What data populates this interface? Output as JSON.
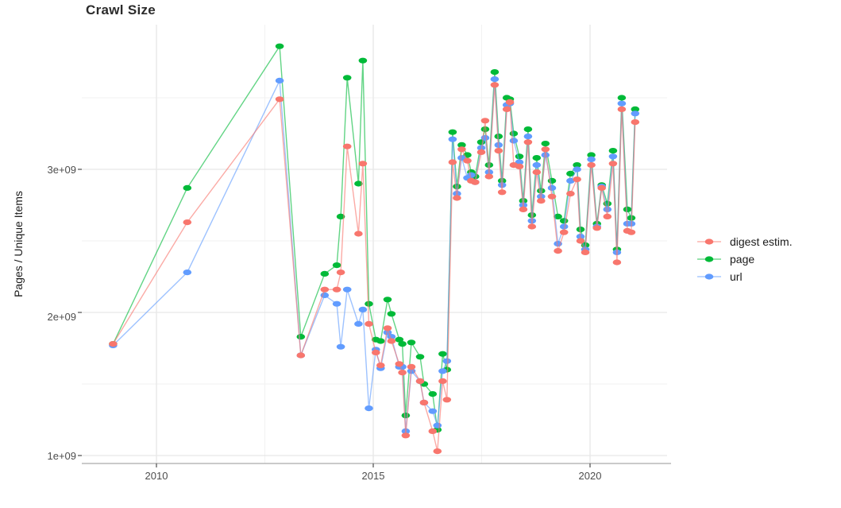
{
  "title": "Crawl Size",
  "axes": {
    "y_label": "Pages / Unique Items",
    "y_tick_labels": [
      "3e+09",
      "2e+09",
      "1e+09"
    ],
    "x_tick_labels": [
      "2010",
      "2015",
      "2020"
    ]
  },
  "legend": {
    "items": [
      {
        "label": "digest estim.",
        "color": "#F8766D"
      },
      {
        "label": "page",
        "color": "#00BA38"
      },
      {
        "label": "url",
        "color": "#619CFF"
      }
    ]
  },
  "colors": {
    "background": "#ffffff",
    "grid_major": "#e6e6e6",
    "grid_minor": "#f2f2f2",
    "axis_line": "#ababab",
    "tick_mark": "#4d4d4d",
    "title_text": "#2b2b2b",
    "axis_text": "#4d4d4d"
  },
  "chart_data": {
    "type": "line",
    "title": "Crawl Size",
    "xlabel": "",
    "ylabel": "Pages / Unique Items",
    "value_unit": "1e9 (billions of pages / unique items)",
    "xlim": [
      2008.3,
      2021.95
    ],
    "ylim_billion": [
      0.95,
      4.02
    ],
    "x_major_ticks": [
      2010,
      2015,
      2020
    ],
    "x_minor_ticks": [
      2012.5,
      2017.5
    ],
    "y_major_ticks_billion": [
      1,
      2,
      3
    ],
    "y_minor_ticks_billion": [
      1.5,
      2.5,
      3.5
    ],
    "grid": true,
    "legend_position": "right",
    "t": [
      2009.0,
      2010.71,
      2012.84,
      2013.33,
      2013.88,
      2014.16,
      2014.25,
      2014.4,
      2014.66,
      2014.76,
      2014.9,
      2015.06,
      2015.17,
      2015.33,
      2015.42,
      2015.6,
      2015.67,
      2015.75,
      2015.88,
      2016.08,
      2016.17,
      2016.37,
      2016.48,
      2016.6,
      2016.7,
      2016.83,
      2016.93,
      2017.04,
      2017.17,
      2017.26,
      2017.35,
      2017.49,
      2017.58,
      2017.67,
      2017.8,
      2017.89,
      2017.97,
      2018.08,
      2018.15,
      2018.24,
      2018.37,
      2018.46,
      2018.57,
      2018.66,
      2018.77,
      2018.87,
      2018.97,
      2019.12,
      2019.26,
      2019.4,
      2019.55,
      2019.7,
      2019.78,
      2019.89,
      2020.03,
      2020.16,
      2020.27,
      2020.4,
      2020.53,
      2020.62,
      2020.73,
      2020.86,
      2020.95,
      2021.04
    ],
    "series": [
      {
        "name": "digest estim.",
        "color": "#F8766D",
        "values_billion": [
          1.78,
          2.63,
          3.49,
          1.7,
          2.16,
          2.16,
          2.28,
          3.16,
          2.55,
          3.04,
          1.92,
          1.72,
          1.63,
          1.89,
          1.8,
          1.64,
          1.58,
          1.14,
          1.62,
          1.52,
          1.37,
          1.17,
          1.03,
          1.52,
          1.39,
          3.05,
          2.8,
          3.14,
          3.06,
          2.92,
          2.91,
          3.12,
          3.34,
          2.95,
          3.59,
          3.13,
          2.84,
          3.42,
          3.47,
          3.03,
          3.02,
          2.72,
          3.19,
          2.6,
          2.98,
          2.78,
          3.14,
          2.81,
          2.43,
          2.56,
          2.83,
          2.93,
          2.5,
          2.42,
          3.03,
          2.59,
          2.87,
          2.67,
          3.04,
          2.35,
          3.42,
          2.57,
          2.56,
          3.33
        ]
      },
      {
        "name": "page",
        "color": "#00BA38",
        "values_billion": [
          1.78,
          2.87,
          3.86,
          1.83,
          2.27,
          2.33,
          2.67,
          3.64,
          2.9,
          3.76,
          2.06,
          1.81,
          1.8,
          2.09,
          1.99,
          1.81,
          1.78,
          1.28,
          1.79,
          1.69,
          1.5,
          1.43,
          1.18,
          1.71,
          1.6,
          3.26,
          2.88,
          3.17,
          3.1,
          2.98,
          2.95,
          3.19,
          3.28,
          3.03,
          3.68,
          3.23,
          2.92,
          3.5,
          3.49,
          3.25,
          3.09,
          2.78,
          3.28,
          2.68,
          3.08,
          2.85,
          3.18,
          2.92,
          2.67,
          2.64,
          2.97,
          3.03,
          2.58,
          2.47,
          3.1,
          2.62,
          2.89,
          2.76,
          3.13,
          2.44,
          3.5,
          2.72,
          2.66,
          3.42
        ]
      },
      {
        "name": "url",
        "color": "#619CFF",
        "values_billion": [
          1.77,
          2.28,
          3.62,
          1.7,
          2.12,
          2.06,
          1.76,
          2.16,
          1.92,
          2.02,
          1.33,
          1.74,
          1.61,
          1.86,
          1.83,
          1.62,
          1.62,
          1.17,
          1.59,
          1.52,
          1.37,
          1.31,
          1.21,
          1.59,
          1.66,
          3.21,
          2.83,
          3.08,
          2.94,
          2.96,
          2.91,
          3.15,
          3.22,
          2.98,
          3.63,
          3.17,
          2.89,
          3.45,
          3.46,
          3.2,
          3.05,
          2.75,
          3.23,
          2.64,
          3.03,
          2.81,
          3.1,
          2.87,
          2.48,
          2.6,
          2.92,
          3.0,
          2.53,
          2.44,
          3.07,
          2.6,
          2.88,
          2.72,
          3.09,
          2.42,
          3.46,
          2.62,
          2.62,
          3.39
        ]
      }
    ]
  }
}
